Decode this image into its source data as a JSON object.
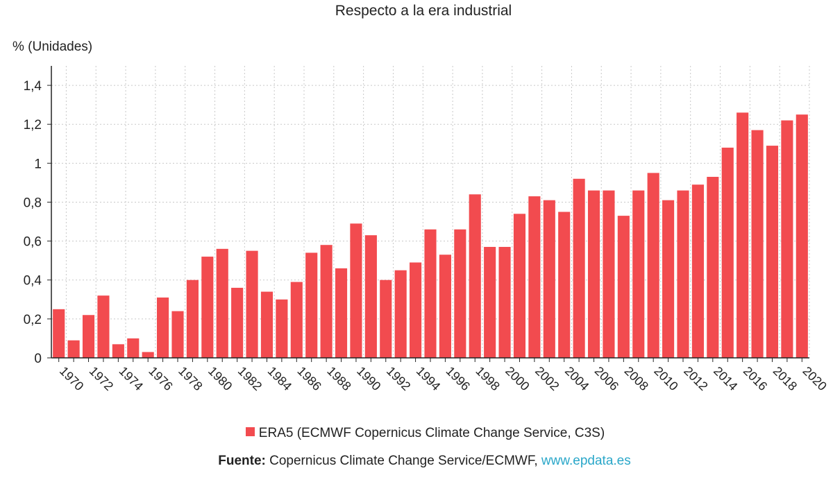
{
  "chart_data": {
    "type": "bar",
    "title": "Respecto a la era industrial",
    "ylabel": "% (Unidades)",
    "xlabel": "",
    "ylim": [
      0,
      1.5
    ],
    "yticks": [
      "0",
      "0,2",
      "0,4",
      "0,6",
      "0,8",
      "1",
      "1,2",
      "1,4"
    ],
    "ytick_values": [
      0,
      0.2,
      0.4,
      0.6,
      0.8,
      1.0,
      1.2,
      1.4
    ],
    "grid": true,
    "legend_position": "bottom",
    "categories": [
      "1970",
      "1971",
      "1972",
      "1973",
      "1974",
      "1975",
      "1976",
      "1977",
      "1978",
      "1979",
      "1980",
      "1981",
      "1982",
      "1983",
      "1984",
      "1985",
      "1986",
      "1987",
      "1988",
      "1989",
      "1990",
      "1991",
      "1992",
      "1993",
      "1994",
      "1995",
      "1996",
      "1997",
      "1998",
      "1999",
      "2000",
      "2001",
      "2002",
      "2003",
      "2004",
      "2005",
      "2006",
      "2007",
      "2008",
      "2009",
      "2010",
      "2011",
      "2012",
      "2013",
      "2014",
      "2015",
      "2016",
      "2017",
      "2018",
      "2019",
      "2020"
    ],
    "series": [
      {
        "name": "ERA5 (ECMWF Copernicus Climate Change Service, C3S)",
        "color": "#f24b4f",
        "values": [
          0.25,
          0.09,
          0.22,
          0.32,
          0.07,
          0.1,
          0.03,
          0.31,
          0.24,
          0.4,
          0.52,
          0.56,
          0.36,
          0.55,
          0.34,
          0.3,
          0.39,
          0.54,
          0.58,
          0.46,
          0.69,
          0.63,
          0.4,
          0.45,
          0.49,
          0.66,
          0.53,
          0.66,
          0.84,
          0.57,
          0.57,
          0.74,
          0.83,
          0.81,
          0.75,
          0.92,
          0.86,
          0.86,
          0.73,
          0.86,
          0.95,
          0.81,
          0.86,
          0.89,
          0.93,
          1.08,
          1.26,
          1.17,
          1.09,
          1.22,
          1.25
        ]
      }
    ]
  },
  "source": {
    "label": "Fuente:",
    "text": " Copernicus Climate Change Service/ECMWF, ",
    "link": "www.epdata.es"
  }
}
